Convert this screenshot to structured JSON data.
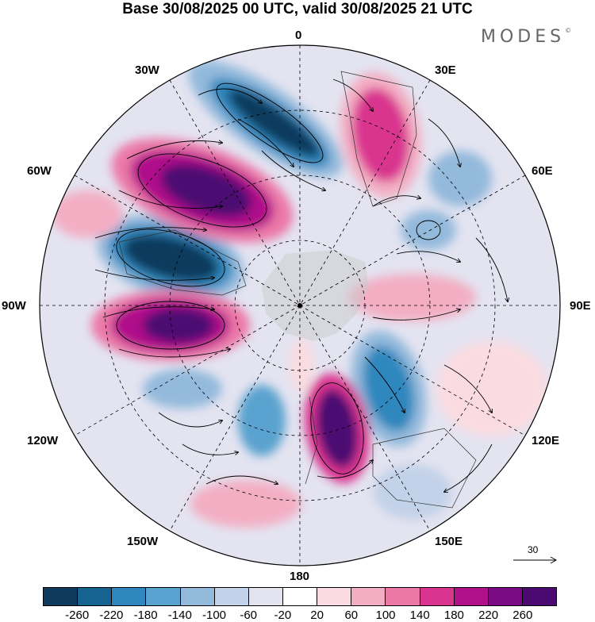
{
  "title": "Base 30/08/2025 00 UTC, valid 30/08/2025 21 UTC",
  "brand": {
    "name": "MODES",
    "mark": "©"
  },
  "longitude_labels": [
    "0",
    "30E",
    "60E",
    "90E",
    "120E",
    "150E",
    "180",
    "150W",
    "120W",
    "90W",
    "60W",
    "30W"
  ],
  "vector_reference": {
    "value": "30"
  },
  "colorbar": {
    "levels": [
      "-260",
      "-220",
      "-180",
      "-140",
      "-100",
      "-60",
      "-20",
      "20",
      "60",
      "100",
      "140",
      "180",
      "220",
      "260"
    ],
    "colors": [
      "#0e3b5d",
      "#166392",
      "#2f87bd",
      "#5aa2cf",
      "#93b9db",
      "#c2d2e8",
      "#e4e4f1",
      "#ffffff",
      "#fadbe1",
      "#f3aec3",
      "#eb78a7",
      "#d9348f",
      "#b0108a",
      "#7a0a84",
      "#4b0a72"
    ]
  },
  "colors": {
    "map_background": "#ffffff",
    "grid": "#000000",
    "land": "#c8c8c8"
  }
}
